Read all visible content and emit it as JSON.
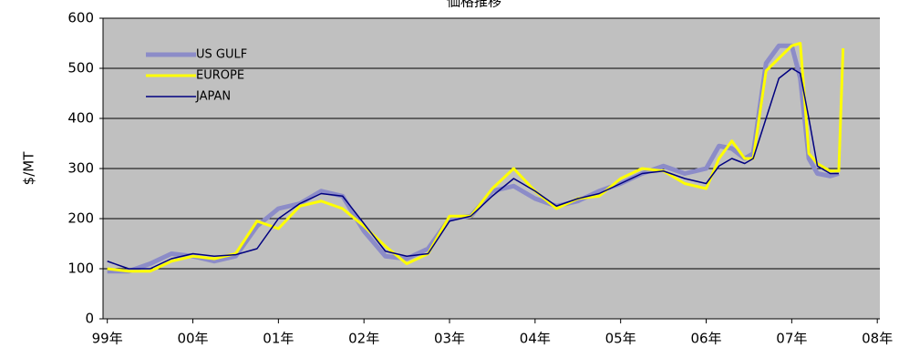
{
  "chart_data": {
    "type": "line",
    "title": "価格推移",
    "ylabel": "$/MT",
    "x": [
      1999.0,
      1999.25,
      1999.5,
      1999.75,
      2000.0,
      2000.25,
      2000.5,
      2000.75,
      2001.0,
      2001.25,
      2001.5,
      2001.75,
      2002.0,
      2002.25,
      2002.5,
      2002.75,
      2003.0,
      2003.25,
      2003.5,
      2003.75,
      2004.0,
      2004.25,
      2004.5,
      2004.75,
      2005.0,
      2005.25,
      2005.5,
      2005.75,
      2006.0,
      2006.15,
      2006.3,
      2006.45,
      2006.55,
      2006.7,
      2006.85,
      2007.0,
      2007.1,
      2007.2,
      2007.3,
      2007.45,
      2007.55,
      2007.6
    ],
    "series": [
      {
        "name": "US GULF",
        "color": "#8c8cc8",
        "width": 5,
        "values": [
          95,
          95,
          110,
          130,
          125,
          115,
          125,
          185,
          220,
          230,
          255,
          245,
          175,
          125,
          120,
          140,
          200,
          205,
          255,
          265,
          240,
          225,
          235,
          255,
          270,
          290,
          305,
          290,
          300,
          345,
          340,
          320,
          330,
          510,
          545,
          545,
          480,
          320,
          290,
          285,
          290,
          null
        ]
      },
      {
        "name": "EUROPE",
        "color": "#ffff00",
        "width": 3,
        "values": [
          100,
          95,
          95,
          115,
          125,
          120,
          130,
          195,
          180,
          225,
          235,
          220,
          185,
          145,
          110,
          130,
          205,
          205,
          260,
          300,
          255,
          220,
          240,
          245,
          280,
          300,
          295,
          270,
          260,
          320,
          355,
          320,
          320,
          495,
          520,
          545,
          550,
          330,
          310,
          295,
          295,
          540
        ]
      },
      {
        "name": "JAPAN",
        "color": "#000080",
        "width": 1.5,
        "values": [
          115,
          100,
          100,
          120,
          130,
          125,
          128,
          140,
          200,
          230,
          250,
          245,
          190,
          135,
          125,
          130,
          195,
          205,
          245,
          280,
          255,
          225,
          240,
          250,
          270,
          290,
          295,
          280,
          270,
          305,
          320,
          310,
          320,
          400,
          480,
          500,
          490,
          400,
          305,
          290,
          290,
          null
        ]
      }
    ],
    "xlim": [
      1998.95,
      2008.03
    ],
    "xticks": [
      {
        "value": 1999,
        "label": "99年"
      },
      {
        "value": 2000,
        "label": "00年"
      },
      {
        "value": 2001,
        "label": "01年"
      },
      {
        "value": 2002,
        "label": "02年"
      },
      {
        "value": 2003,
        "label": "03年"
      },
      {
        "value": 2004,
        "label": "04年"
      },
      {
        "value": 2005,
        "label": "05年"
      },
      {
        "value": 2006,
        "label": "06年"
      },
      {
        "value": 2007,
        "label": "07年"
      },
      {
        "value": 2008,
        "label": "08年"
      }
    ],
    "ylim": [
      0,
      600
    ],
    "yticks": [
      0,
      100,
      200,
      300,
      400,
      500,
      600
    ],
    "grid": true,
    "legend": "upper left"
  }
}
